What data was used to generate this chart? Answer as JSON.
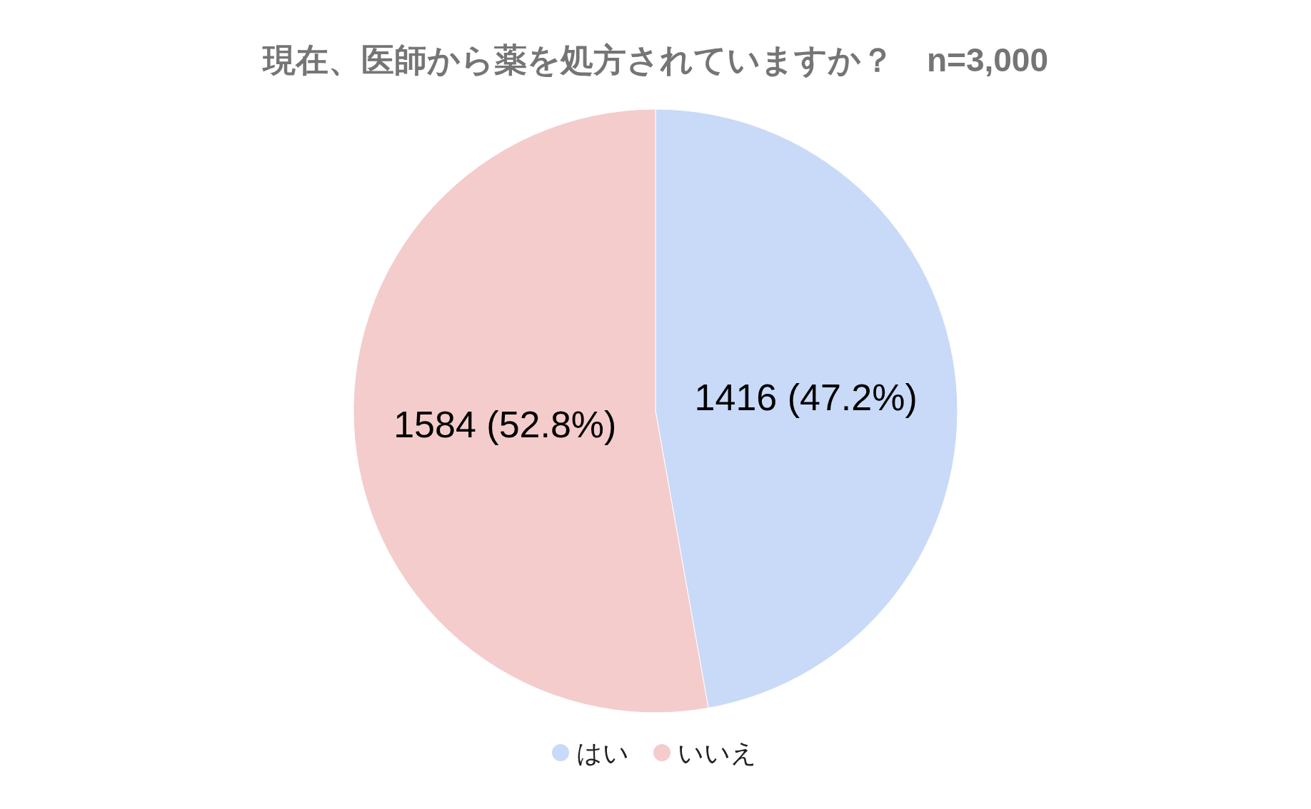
{
  "chart_data": {
    "type": "pie",
    "title": "現在、医師から薬を処方されていますか？　n=3,000",
    "categories": [
      "はい",
      "いいえ"
    ],
    "values": [
      1416,
      1584
    ],
    "colors": [
      "#c9daf8",
      "#f4cccc"
    ],
    "value_labels": [
      "1416 (47.2%)",
      "1584 (52.8%)"
    ],
    "legend": "bottom"
  }
}
